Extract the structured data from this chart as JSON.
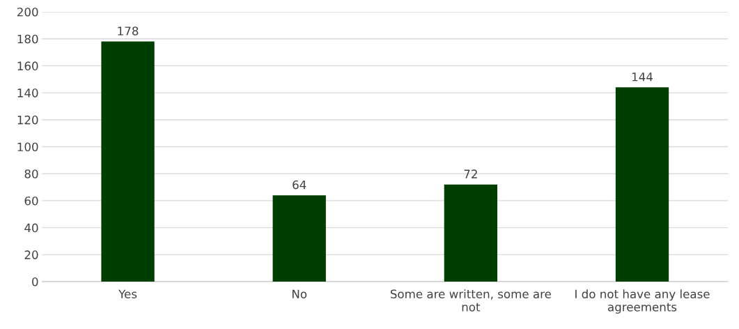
{
  "chart_data": {
    "type": "bar",
    "categories": [
      "Yes",
      "No",
      "Some are written, some are not",
      "I do not have any lease agreements"
    ],
    "values": [
      178,
      64,
      72,
      144
    ],
    "color": "#003d00",
    "ylim": [
      0,
      200
    ],
    "yticks": [
      0,
      20,
      40,
      60,
      80,
      100,
      120,
      140,
      160,
      180,
      200
    ],
    "grid": "y",
    "data_labels": true
  }
}
